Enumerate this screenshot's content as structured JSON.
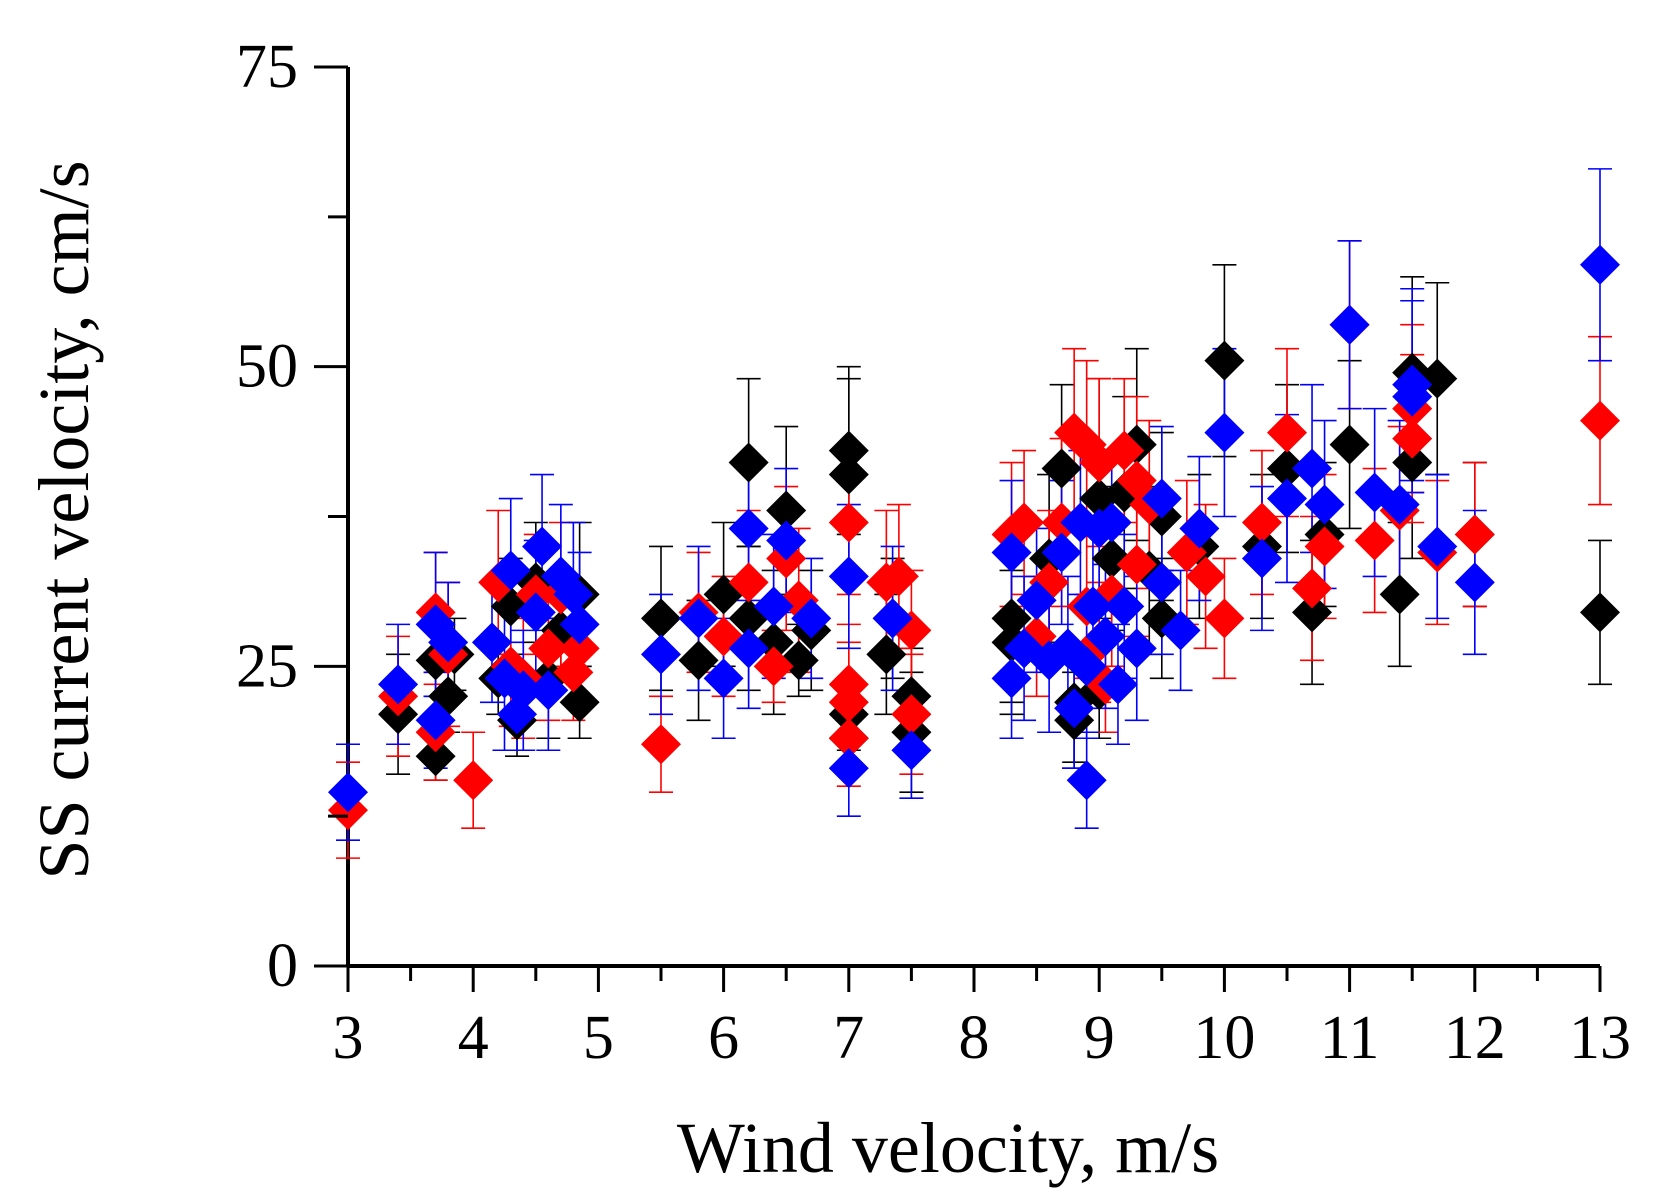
{
  "chart_data": {
    "type": "scatter",
    "title": "",
    "xlabel": "Wind velocity, m/s",
    "ylabel": "SS current velocity, cm/s",
    "xlim": [
      3,
      13
    ],
    "ylim": [
      0,
      75
    ],
    "x_ticks": [
      "3",
      "4",
      "5",
      "6",
      "7",
      "8",
      "9",
      "10",
      "11",
      "12",
      "13"
    ],
    "y_ticks": [
      "0",
      "25",
      "50",
      "75"
    ],
    "grid": false,
    "legend": "none",
    "series": [
      {
        "name": "black",
        "color": "#000000",
        "points": [
          [
            3.4,
            21,
            5
          ],
          [
            3.7,
            17.5,
            2
          ],
          [
            3.7,
            25.5,
            3
          ],
          [
            3.8,
            22.5,
            3
          ],
          [
            3.85,
            26,
            3
          ],
          [
            4.2,
            24,
            3
          ],
          [
            4.3,
            30,
            4
          ],
          [
            4.35,
            20.5,
            3
          ],
          [
            4.5,
            32,
            5
          ],
          [
            4.6,
            24,
            5
          ],
          [
            4.7,
            28,
            3
          ],
          [
            4.85,
            22,
            3
          ],
          [
            4.85,
            31,
            6
          ],
          [
            5.5,
            29,
            6
          ],
          [
            5.8,
            25.5,
            5
          ],
          [
            6.0,
            31,
            6
          ],
          [
            6.2,
            42,
            7
          ],
          [
            6.2,
            29,
            6
          ],
          [
            6.4,
            27,
            6
          ],
          [
            6.5,
            38,
            7
          ],
          [
            6.6,
            25.5,
            3
          ],
          [
            6.7,
            28,
            5
          ],
          [
            7.0,
            43,
            7
          ],
          [
            7.0,
            41,
            8
          ],
          [
            7.0,
            21,
            3
          ],
          [
            7.0,
            19,
            3
          ],
          [
            7.3,
            26,
            5
          ],
          [
            7.35,
            29,
            5
          ],
          [
            7.5,
            22.5,
            4
          ],
          [
            7.5,
            19.5,
            5
          ],
          [
            8.3,
            29,
            7
          ],
          [
            8.3,
            27,
            6
          ],
          [
            8.6,
            34,
            7
          ],
          [
            8.7,
            41.5,
            7
          ],
          [
            8.8,
            22,
            5
          ],
          [
            8.8,
            20.5,
            4
          ],
          [
            9.0,
            39,
            10
          ],
          [
            9.0,
            23,
            4
          ],
          [
            9.1,
            34,
            6
          ],
          [
            9.2,
            39.5,
            8
          ],
          [
            9.3,
            43.5,
            8
          ],
          [
            9.4,
            33,
            7
          ],
          [
            9.5,
            29,
            5
          ],
          [
            9.5,
            37.5,
            7
          ],
          [
            9.8,
            35,
            6
          ],
          [
            10.0,
            50.5,
            8
          ],
          [
            10.3,
            35,
            6
          ],
          [
            10.5,
            41.5,
            7
          ],
          [
            10.7,
            29.5,
            6
          ],
          [
            10.8,
            36,
            6
          ],
          [
            11.0,
            43.5,
            7
          ],
          [
            11.4,
            31,
            6
          ],
          [
            11.5,
            42,
            8
          ],
          [
            11.5,
            49.5,
            8
          ],
          [
            11.7,
            49,
            8
          ],
          [
            12.0,
            36,
            6
          ],
          [
            13.0,
            29.5,
            6
          ]
        ]
      },
      {
        "name": "red",
        "color": "#ff0000",
        "points": [
          [
            3.0,
            13,
            4
          ],
          [
            3.4,
            22.5,
            5
          ],
          [
            3.7,
            29.5,
            5
          ],
          [
            3.7,
            19.5,
            4
          ],
          [
            3.8,
            26,
            6
          ],
          [
            4.0,
            15.5,
            4
          ],
          [
            4.2,
            32,
            6
          ],
          [
            4.3,
            25,
            5
          ],
          [
            4.4,
            24,
            5
          ],
          [
            4.5,
            31,
            5
          ],
          [
            4.6,
            26.5,
            6
          ],
          [
            4.7,
            31,
            6
          ],
          [
            4.8,
            24.5,
            4
          ],
          [
            4.85,
            26.5,
            5
          ],
          [
            5.5,
            18.5,
            4
          ],
          [
            5.8,
            29.5,
            5
          ],
          [
            6.0,
            27.5,
            5
          ],
          [
            6.2,
            32,
            6
          ],
          [
            6.4,
            25,
            3
          ],
          [
            6.5,
            34,
            6
          ],
          [
            6.6,
            30.5,
            6
          ],
          [
            7.0,
            37,
            6
          ],
          [
            7.0,
            23.5,
            5
          ],
          [
            7.0,
            22,
            5
          ],
          [
            7.0,
            19,
            4
          ],
          [
            7.3,
            32,
            6
          ],
          [
            7.4,
            32.5,
            6
          ],
          [
            7.5,
            28,
            5
          ],
          [
            7.5,
            21,
            5
          ],
          [
            8.3,
            36,
            6
          ],
          [
            8.4,
            37,
            6
          ],
          [
            8.5,
            27.5,
            5
          ],
          [
            8.6,
            32,
            6
          ],
          [
            8.7,
            37,
            7
          ],
          [
            8.8,
            44.5,
            7
          ],
          [
            8.9,
            30,
            6
          ],
          [
            8.9,
            43.5,
            7
          ],
          [
            9.0,
            42,
            7
          ],
          [
            9.0,
            27,
            5
          ],
          [
            9.05,
            23.5,
            4
          ],
          [
            9.1,
            31,
            6
          ],
          [
            9.2,
            43,
            6
          ],
          [
            9.3,
            40.5,
            7
          ],
          [
            9.3,
            33.5,
            6
          ],
          [
            9.4,
            38.5,
            7
          ],
          [
            9.7,
            34.5,
            6
          ],
          [
            9.85,
            32.5,
            6
          ],
          [
            10.0,
            29,
            5
          ],
          [
            10.3,
            37,
            6
          ],
          [
            10.5,
            44.5,
            7
          ],
          [
            10.7,
            31.5,
            6
          ],
          [
            10.8,
            35,
            6
          ],
          [
            11.0,
            53.5,
            7
          ],
          [
            11.2,
            35.5,
            6
          ],
          [
            11.4,
            38,
            7
          ],
          [
            11.5,
            44,
            7
          ],
          [
            11.5,
            46.5,
            7
          ],
          [
            11.7,
            34.5,
            6
          ],
          [
            12.0,
            36,
            6
          ],
          [
            13.0,
            45.5,
            7
          ]
        ]
      },
      {
        "name": "blue",
        "color": "#0000ff",
        "points": [
          [
            3.0,
            14.5,
            4
          ],
          [
            3.4,
            23.5,
            5
          ],
          [
            3.7,
            20.5,
            4
          ],
          [
            3.7,
            28.5,
            6
          ],
          [
            3.8,
            27,
            5
          ],
          [
            4.15,
            27,
            5
          ],
          [
            4.25,
            24,
            6
          ],
          [
            4.3,
            33,
            6
          ],
          [
            4.35,
            21,
            3
          ],
          [
            4.4,
            23,
            5
          ],
          [
            4.5,
            29.5,
            6
          ],
          [
            4.55,
            35,
            6
          ],
          [
            4.6,
            23,
            5
          ],
          [
            4.7,
            32.5,
            6
          ],
          [
            4.8,
            31,
            6
          ],
          [
            4.85,
            28.5,
            6
          ],
          [
            5.5,
            26,
            5
          ],
          [
            5.8,
            29,
            6
          ],
          [
            6.0,
            24,
            5
          ],
          [
            6.2,
            36.5,
            6
          ],
          [
            6.2,
            26.5,
            5
          ],
          [
            6.4,
            30,
            6
          ],
          [
            6.5,
            35.5,
            6
          ],
          [
            6.7,
            29,
            5
          ],
          [
            7.0,
            32.5,
            6
          ],
          [
            7.0,
            16.5,
            4
          ],
          [
            7.35,
            29,
            6
          ],
          [
            7.5,
            18,
            4
          ],
          [
            8.3,
            34.5,
            6
          ],
          [
            8.3,
            24,
            5
          ],
          [
            8.4,
            26.5,
            6
          ],
          [
            8.5,
            30.5,
            6
          ],
          [
            8.6,
            25.5,
            6
          ],
          [
            8.7,
            34.5,
            6
          ],
          [
            8.75,
            26.5,
            6
          ],
          [
            8.8,
            21.5,
            5
          ],
          [
            8.85,
            37,
            6
          ],
          [
            8.9,
            25,
            6
          ],
          [
            8.9,
            15.5,
            4
          ],
          [
            8.95,
            30,
            6
          ],
          [
            9.0,
            36.5,
            6
          ],
          [
            9.05,
            27.5,
            6
          ],
          [
            9.1,
            37,
            6
          ],
          [
            9.15,
            23.5,
            5
          ],
          [
            9.2,
            30,
            6
          ],
          [
            9.3,
            26.5,
            6
          ],
          [
            9.5,
            32,
            6
          ],
          [
            9.5,
            39,
            6
          ],
          [
            9.65,
            28,
            5
          ],
          [
            9.8,
            36.5,
            6
          ],
          [
            10.0,
            44.5,
            7
          ],
          [
            10.3,
            34,
            6
          ],
          [
            10.5,
            39,
            7
          ],
          [
            10.7,
            41.5,
            7
          ],
          [
            10.8,
            38.5,
            7
          ],
          [
            11.0,
            53.5,
            7
          ],
          [
            11.2,
            39.5,
            7
          ],
          [
            11.4,
            38.5,
            7
          ],
          [
            11.5,
            47.5,
            8
          ],
          [
            11.5,
            48.5,
            8
          ],
          [
            11.7,
            35,
            6
          ],
          [
            12.0,
            32,
            6
          ],
          [
            13.0,
            58.5,
            8
          ]
        ]
      }
    ]
  }
}
